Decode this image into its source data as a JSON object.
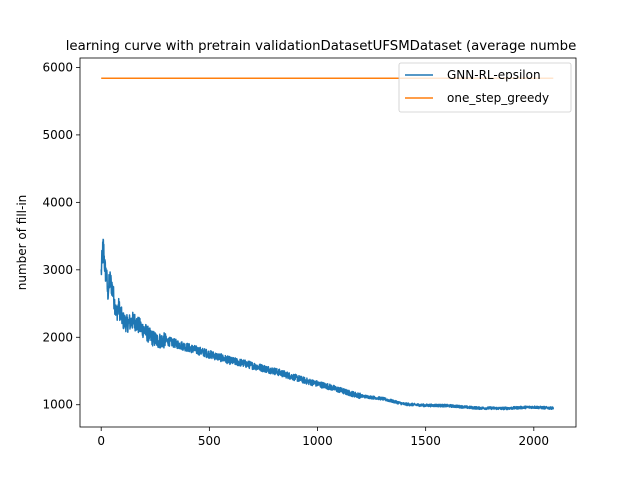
{
  "chart_data": {
    "type": "line",
    "title": "learning curve with pretrain validationDatasetUFSMDataset (average numbe",
    "xlabel": "",
    "ylabel": "number of fill-in",
    "xlim": [
      -98,
      2195
    ],
    "ylim": [
      670,
      6140
    ],
    "x_ticks": [
      0,
      500,
      1000,
      1500,
      2000
    ],
    "y_ticks": [
      1000,
      2000,
      3000,
      4000,
      5000,
      6000
    ],
    "grid": false,
    "legend_position": "top-right",
    "series": [
      {
        "name": "GNN-RL-epsilon",
        "color": "#1f77b4",
        "x_range": [
          0,
          2090
        ],
        "anchors": [
          [
            0,
            2950
          ],
          [
            5,
            3200
          ],
          [
            10,
            3350
          ],
          [
            18,
            3000
          ],
          [
            25,
            2900
          ],
          [
            30,
            2650
          ],
          [
            40,
            2850
          ],
          [
            50,
            2750
          ],
          [
            60,
            2550
          ],
          [
            70,
            2350
          ],
          [
            80,
            2450
          ],
          [
            100,
            2250
          ],
          [
            120,
            2200
          ],
          [
            150,
            2250
          ],
          [
            180,
            2150
          ],
          [
            200,
            2100
          ],
          [
            230,
            2000
          ],
          [
            260,
            1950
          ],
          [
            300,
            1950
          ],
          [
            350,
            1900
          ],
          [
            400,
            1850
          ],
          [
            450,
            1800
          ],
          [
            500,
            1750
          ],
          [
            550,
            1700
          ],
          [
            600,
            1650
          ],
          [
            650,
            1620
          ],
          [
            700,
            1580
          ],
          [
            750,
            1540
          ],
          [
            800,
            1500
          ],
          [
            850,
            1450
          ],
          [
            900,
            1400
          ],
          [
            950,
            1350
          ],
          [
            1000,
            1310
          ],
          [
            1050,
            1270
          ],
          [
            1100,
            1220
          ],
          [
            1150,
            1170
          ],
          [
            1200,
            1130
          ],
          [
            1250,
            1110
          ],
          [
            1300,
            1090
          ],
          [
            1350,
            1050
          ],
          [
            1400,
            1010
          ],
          [
            1450,
            1000
          ],
          [
            1500,
            990
          ],
          [
            1550,
            990
          ],
          [
            1600,
            985
          ],
          [
            1650,
            975
          ],
          [
            1700,
            960
          ],
          [
            1750,
            950
          ],
          [
            1800,
            950
          ],
          [
            1850,
            945
          ],
          [
            1900,
            950
          ],
          [
            1950,
            960
          ],
          [
            2000,
            965
          ],
          [
            2050,
            955
          ],
          [
            2090,
            950
          ]
        ]
      },
      {
        "name": "one_step_greedy",
        "color": "#ff7f0e",
        "x": [
          0,
          2090
        ],
        "y": [
          5840,
          5840
        ]
      }
    ]
  }
}
